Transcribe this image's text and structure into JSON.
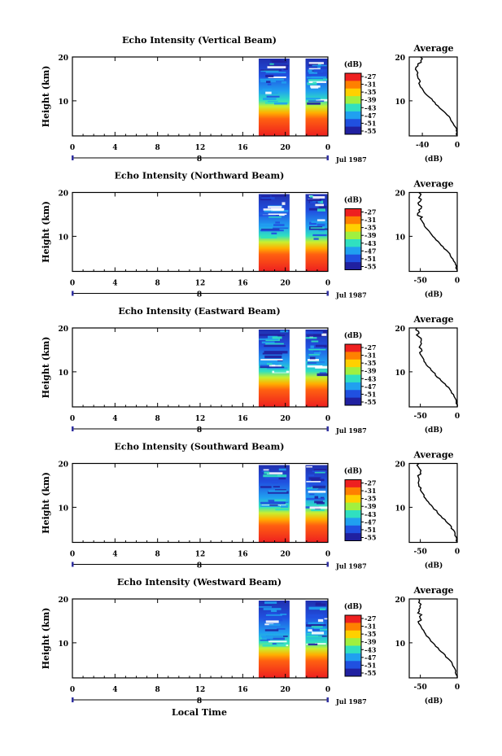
{
  "figure": {
    "local_time_label": "Local Time",
    "date_label": "Jul 1987",
    "day_label": "8",
    "average_title": "Average",
    "average_xlabel": "(dB)",
    "colorbar_unit": "(dB)",
    "colorbar_levels": [
      "-27",
      "-31",
      "-35",
      "-39",
      "-43",
      "-47",
      "-51",
      "-55"
    ],
    "colorbar_colors": [
      "#ee2020",
      "#ff8000",
      "#ffd000",
      "#a0f040",
      "#30e0c0",
      "#20a0f0",
      "#2050e0",
      "#2020a0"
    ],
    "height_ylabel": "Height (km)",
    "height_ticks": [
      "20",
      "10"
    ],
    "time_ticks": [
      "0",
      "4",
      "8",
      "12",
      "16",
      "20",
      "0"
    ]
  },
  "chart_data": [
    {
      "type": "heatmap",
      "title": "Echo Intensity (Vertical Beam)",
      "ylabel": "Height (km)",
      "xlabel": "Local Time",
      "xlim": [
        0,
        24
      ],
      "ylim": [
        2,
        20
      ],
      "data_segments_hours": [
        [
          17.5,
          20.4
        ],
        [
          21.9,
          24
        ]
      ],
      "colorbar": {
        "unit": "(dB)",
        "range": [
          -55,
          -27
        ]
      },
      "average": {
        "x_ticks": [
          "-40",
          "0"
        ],
        "xlim": [
          -55,
          0
        ],
        "ylim": [
          2,
          20
        ],
        "profile": [
          {
            "height": 2,
            "db": 0
          },
          {
            "height": 4,
            "db": -2
          },
          {
            "height": 6,
            "db": -8
          },
          {
            "height": 8,
            "db": -18
          },
          {
            "height": 10,
            "db": -28
          },
          {
            "height": 12,
            "db": -38
          },
          {
            "height": 14,
            "db": -44
          },
          {
            "height": 16,
            "db": -46
          },
          {
            "height": 18,
            "db": -45
          },
          {
            "height": 20,
            "db": -42
          }
        ]
      }
    },
    {
      "type": "heatmap",
      "title": "Echo Intensity (Northward Beam)",
      "ylabel": "Height (km)",
      "xlabel": "Local Time",
      "xlim": [
        0,
        24
      ],
      "ylim": [
        2,
        20
      ],
      "data_segments_hours": [
        [
          17.5,
          20.4
        ],
        [
          21.9,
          24
        ]
      ],
      "colorbar": {
        "unit": "(dB)",
        "range": [
          -55,
          -27
        ]
      },
      "average": {
        "x_ticks": [
          "-50",
          "0"
        ],
        "xlim": [
          -65,
          0
        ],
        "ylim": [
          2,
          20
        ],
        "profile": [
          {
            "height": 2,
            "db": 0
          },
          {
            "height": 4,
            "db": -3
          },
          {
            "height": 6,
            "db": -10
          },
          {
            "height": 8,
            "db": -22
          },
          {
            "height": 10,
            "db": -33
          },
          {
            "height": 12,
            "db": -43
          },
          {
            "height": 14,
            "db": -50
          },
          {
            "height": 16,
            "db": -52
          },
          {
            "height": 18,
            "db": -50
          },
          {
            "height": 20,
            "db": -52
          }
        ]
      }
    },
    {
      "type": "heatmap",
      "title": "Echo Intensity (Eastward Beam)",
      "ylabel": "Height (km)",
      "xlabel": "Local Time",
      "xlim": [
        0,
        24
      ],
      "ylim": [
        2,
        20
      ],
      "data_segments_hours": [
        [
          17.5,
          20.4
        ],
        [
          21.9,
          24
        ]
      ],
      "colorbar": {
        "unit": "(dB)",
        "range": [
          -55,
          -27
        ]
      },
      "average": {
        "x_ticks": [
          "-50",
          "0"
        ],
        "xlim": [
          -65,
          0
        ],
        "ylim": [
          2,
          20
        ],
        "profile": [
          {
            "height": 2,
            "db": 0
          },
          {
            "height": 4,
            "db": -3
          },
          {
            "height": 6,
            "db": -10
          },
          {
            "height": 8,
            "db": -22
          },
          {
            "height": 10,
            "db": -33
          },
          {
            "height": 12,
            "db": -43
          },
          {
            "height": 14,
            "db": -50
          },
          {
            "height": 16,
            "db": -50
          },
          {
            "height": 18,
            "db": -52
          },
          {
            "height": 20,
            "db": -55
          }
        ]
      }
    },
    {
      "type": "heatmap",
      "title": "Echo Intensity (Southward Beam)",
      "ylabel": "Height (km)",
      "xlabel": "Local Time",
      "xlim": [
        0,
        24
      ],
      "ylim": [
        2,
        20
      ],
      "data_segments_hours": [
        [
          17.5,
          20.4
        ],
        [
          21.9,
          24
        ]
      ],
      "colorbar": {
        "unit": "(dB)",
        "range": [
          -55,
          -27
        ]
      },
      "average": {
        "x_ticks": [
          "-50",
          "0"
        ],
        "xlim": [
          -65,
          0
        ],
        "ylim": [
          2,
          20
        ],
        "profile": [
          {
            "height": 2,
            "db": 0
          },
          {
            "height": 4,
            "db": -3
          },
          {
            "height": 6,
            "db": -10
          },
          {
            "height": 8,
            "db": -22
          },
          {
            "height": 10,
            "db": -33
          },
          {
            "height": 12,
            "db": -43
          },
          {
            "height": 14,
            "db": -50
          },
          {
            "height": 16,
            "db": -52
          },
          {
            "height": 18,
            "db": -50
          },
          {
            "height": 20,
            "db": -52
          }
        ]
      }
    },
    {
      "type": "heatmap",
      "title": "Echo Intensity (Westward Beam)",
      "ylabel": "Height (km)",
      "xlabel": "Local Time",
      "xlim": [
        0,
        24
      ],
      "ylim": [
        2,
        20
      ],
      "data_segments_hours": [
        [
          17.5,
          20.4
        ],
        [
          21.9,
          24
        ]
      ],
      "colorbar": {
        "unit": "(dB)",
        "range": [
          -55,
          -27
        ]
      },
      "average": {
        "x_ticks": [
          "-50",
          "0"
        ],
        "xlim": [
          -65,
          0
        ],
        "ylim": [
          2,
          20
        ],
        "profile": [
          {
            "height": 2,
            "db": 0
          },
          {
            "height": 4,
            "db": -3
          },
          {
            "height": 6,
            "db": -10
          },
          {
            "height": 8,
            "db": -22
          },
          {
            "height": 10,
            "db": -33
          },
          {
            "height": 12,
            "db": -43
          },
          {
            "height": 14,
            "db": -50
          },
          {
            "height": 16,
            "db": -51
          },
          {
            "height": 18,
            "db": -50
          },
          {
            "height": 20,
            "db": -52
          }
        ]
      }
    }
  ]
}
